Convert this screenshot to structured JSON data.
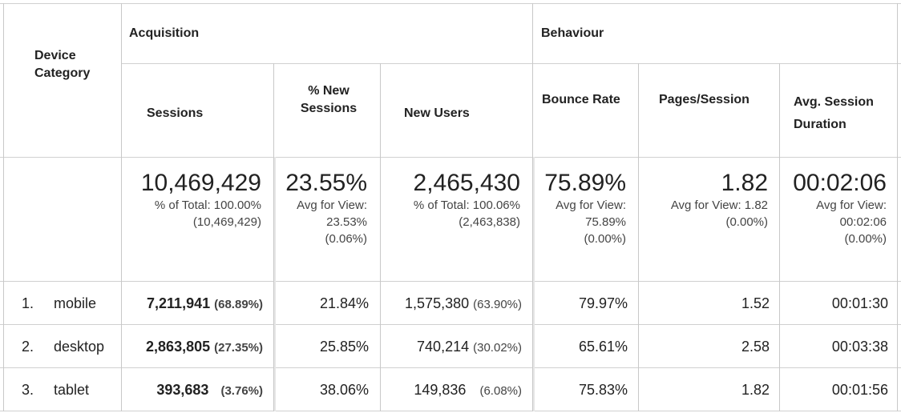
{
  "headers": {
    "device_category": "Device Category",
    "acquisition": "Acquisition",
    "behaviour": "Behaviour",
    "sessions": "Sessions",
    "pct_new_sessions": "% New Sessions",
    "new_users": "New Users",
    "bounce_rate": "Bounce Rate",
    "pages_session": "Pages/Session",
    "avg_session_duration": "Avg. Session Duration"
  },
  "totals": {
    "sessions": {
      "value": "10,469,429",
      "sub": "% of Total: 100.00%\n(10,469,429)"
    },
    "pct_new_sessions": {
      "value": "23.55%",
      "sub": "Avg for View:\n23.53%\n(0.06%)"
    },
    "new_users": {
      "value": "2,465,430",
      "sub": "% of Total: 100.06%\n(2,463,838)"
    },
    "bounce_rate": {
      "value": "75.89%",
      "sub": "Avg for View:\n75.89%\n(0.00%)"
    },
    "pages_session": {
      "value": "1.82",
      "sub": "Avg for View: 1.82\n(0.00%)"
    },
    "avg_session_duration": {
      "value": "00:02:06",
      "sub": "Avg for View:\n00:02:06\n(0.00%)"
    }
  },
  "rows": [
    {
      "index": "1.",
      "device": "mobile",
      "sessions": "7,211,941",
      "sessions_pct": "(68.89%)",
      "pct_new_sessions": "21.84%",
      "new_users": "1,575,380",
      "new_users_pct": "(63.90%)",
      "bounce_rate": "79.97%",
      "pages_session": "1.52",
      "avg_session_duration": "00:01:30"
    },
    {
      "index": "2.",
      "device": "desktop",
      "sessions": "2,863,805",
      "sessions_pct": "(27.35%)",
      "pct_new_sessions": "25.85%",
      "new_users": "740,214",
      "new_users_pct": "(30.02%)",
      "bounce_rate": "65.61%",
      "pages_session": "2.58",
      "avg_session_duration": "00:03:38"
    },
    {
      "index": "3.",
      "device": "tablet",
      "sessions": "393,683",
      "sessions_pct": "(3.76%)",
      "pct_new_sessions": "38.06%",
      "new_users": "149,836",
      "new_users_pct": "(6.08%)",
      "bounce_rate": "75.83%",
      "pages_session": "1.82",
      "avg_session_duration": "00:01:56"
    }
  ]
}
